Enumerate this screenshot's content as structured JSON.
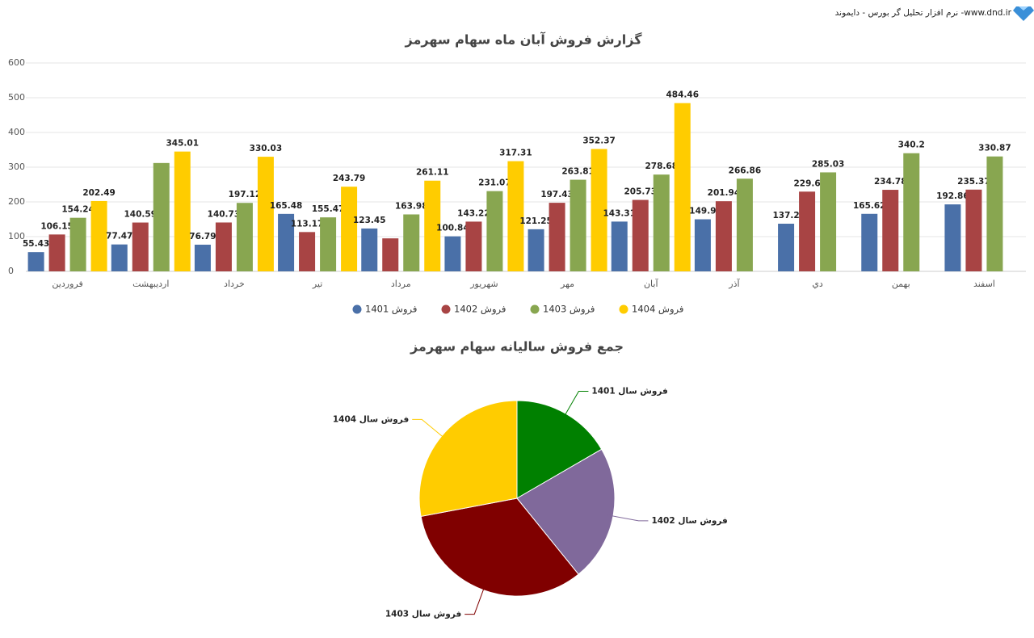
{
  "header": {
    "text": "نرم افزار تحلیل گر بورس - دایموند -www.dnd.ir"
  },
  "chart_data": [
    {
      "type": "bar",
      "title": "گزارش فروش آبان ماه سهام سهرمز",
      "categories": [
        "فروردین",
        "اردیبهشت",
        "خرداد",
        "تیر",
        "مرداد",
        "شهریور",
        "مهر",
        "آبان",
        "آذر",
        "دي",
        "بهمن",
        "اسفند"
      ],
      "series": [
        {
          "name": "فروش 1401",
          "color": "#4a70a8",
          "values": [
            55.43,
            77.47,
            76.79,
            165.48,
            123.45,
            100.84,
            121.25,
            143.31,
            149.9,
            137.2,
            165.62,
            192.86
          ],
          "value_labels": [
            "55.43",
            "77.47",
            "76.79",
            "165.48",
            "123.45",
            "100.84",
            "121.25",
            "143.31",
            "149.9",
            "137.2",
            "165.62",
            "192.86"
          ]
        },
        {
          "name": "فروش 1402",
          "color": "#a84444",
          "values": [
            106.15,
            140.59,
            140.73,
            113.17,
            95,
            143.22,
            197.43,
            205.73,
            201.94,
            229.6,
            234.78,
            235.37
          ],
          "value_labels": [
            "106.15",
            "140.59",
            "140.73",
            "113.17",
            null,
            "143.22",
            "197.43",
            "205.73",
            "201.94",
            "229.6",
            "234.78",
            "235.37"
          ]
        },
        {
          "name": "فروش 1403",
          "color": "#88a650",
          "values": [
            154.24,
            312,
            197.12,
            155.47,
            163.98,
            231.07,
            263.81,
            278.68,
            266.86,
            285.03,
            340.2,
            330.87
          ],
          "value_labels": [
            "154.24",
            null,
            "197.12",
            "155.47",
            "163.98",
            "231.07",
            "263.81",
            "278.68",
            "266.86",
            "285.03",
            "340.2",
            "330.87"
          ]
        },
        {
          "name": "فروش 1404",
          "color": "#ffcc00",
          "values": [
            202.49,
            345.01,
            330.03,
            243.79,
            261.11,
            317.31,
            352.37,
            484.46,
            null,
            null,
            null,
            null
          ],
          "value_labels": [
            "202.49",
            "345.01",
            "330.03",
            "243.79",
            "261.11",
            "317.31",
            "352.37",
            "484.46",
            null,
            null,
            null,
            null
          ]
        }
      ],
      "ylim": [
        0,
        600
      ],
      "yticks": [
        0,
        100,
        200,
        300,
        400,
        500,
        600
      ],
      "grid": true,
      "legend": "bottom"
    },
    {
      "type": "pie",
      "title": "جمع فروش سالیانه سهام سهرمز",
      "categories": [
        "فروش سال 1401",
        "فروش سال 1402",
        "فروش سال 1403",
        "فروش سال 1404"
      ],
      "values": [
        1509.6,
        2043.71,
        2979.33,
        2536.57
      ],
      "colors": [
        "#008000",
        "#80699b",
        "#800000",
        "#ffcc00"
      ]
    }
  ]
}
